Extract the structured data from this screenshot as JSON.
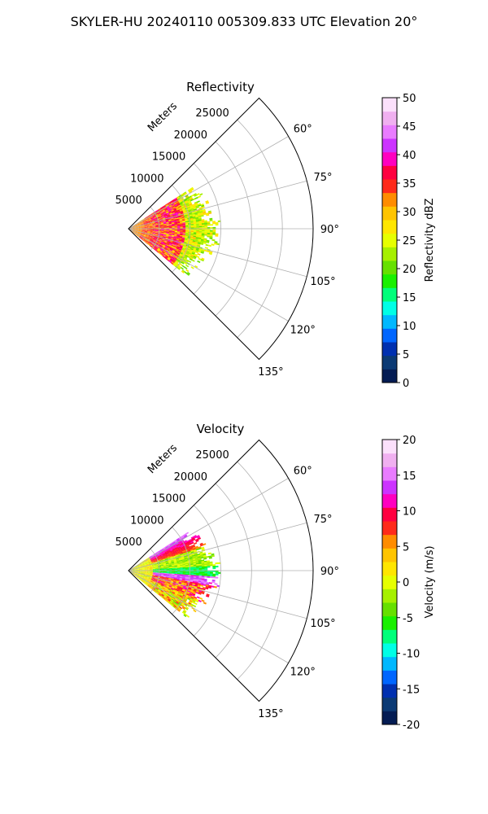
{
  "figure": {
    "title": "SKYLER-HU  20240110  005309.833 UTC Elevation 20°"
  },
  "chart_data": [
    {
      "type": "heatmap",
      "projection": "polar-sector",
      "title": "Reflectivity",
      "range_label": "Meters",
      "range_ticks": [
        5000,
        10000,
        15000,
        20000,
        25000
      ],
      "range_max": 30000,
      "azimuth_ticks": [
        60,
        75,
        90,
        105,
        120,
        135
      ],
      "azimuth_tick_labels": [
        "60°",
        "75°",
        "90°",
        "105°",
        "120°",
        "135°"
      ],
      "azimuth_range": [
        45,
        135
      ],
      "grid": true,
      "colorbar": {
        "label": "Reflectivity dBZ",
        "min": 0,
        "max": 50,
        "ticks": [
          0,
          5,
          10,
          15,
          20,
          25,
          30,
          35,
          40,
          45,
          50
        ],
        "colors": [
          "#041c53",
          "#0b3a74",
          "#0030b0",
          "#0066ff",
          "#00b8ff",
          "#00ffe6",
          "#00ff7a",
          "#19f000",
          "#66e000",
          "#a6f000",
          "#e6ff00",
          "#ffe600",
          "#ffc400",
          "#ff8c00",
          "#ff2a1a",
          "#ff0040",
          "#ff00c0",
          "#cc33ff",
          "#e97cff",
          "#f0b0f0",
          "#fbe0fb"
        ]
      }
    },
    {
      "type": "heatmap",
      "projection": "polar-sector",
      "title": "Velocity",
      "range_label": "Meters",
      "range_ticks": [
        5000,
        10000,
        15000,
        20000,
        25000
      ],
      "range_max": 30000,
      "azimuth_ticks": [
        60,
        75,
        90,
        105,
        120,
        135
      ],
      "azimuth_tick_labels": [
        "60°",
        "75°",
        "90°",
        "105°",
        "120°",
        "135°"
      ],
      "azimuth_range": [
        45,
        135
      ],
      "grid": true,
      "colorbar": {
        "label": "Velocity (m/s)",
        "min": -20,
        "max": 20,
        "ticks": [
          -20,
          -15,
          -10,
          -5,
          0,
          5,
          10,
          15,
          20
        ],
        "colors": [
          "#041c53",
          "#0b3a74",
          "#0030b0",
          "#0066ff",
          "#00b8ff",
          "#00ffe6",
          "#00ff7a",
          "#19f000",
          "#66e000",
          "#a6f000",
          "#e6ff00",
          "#ffe600",
          "#ffc400",
          "#ff8c00",
          "#ff2a1a",
          "#ff0040",
          "#ff00c0",
          "#cc33ff",
          "#e97cff",
          "#f0b0f0",
          "#fbe0fb"
        ]
      }
    }
  ]
}
